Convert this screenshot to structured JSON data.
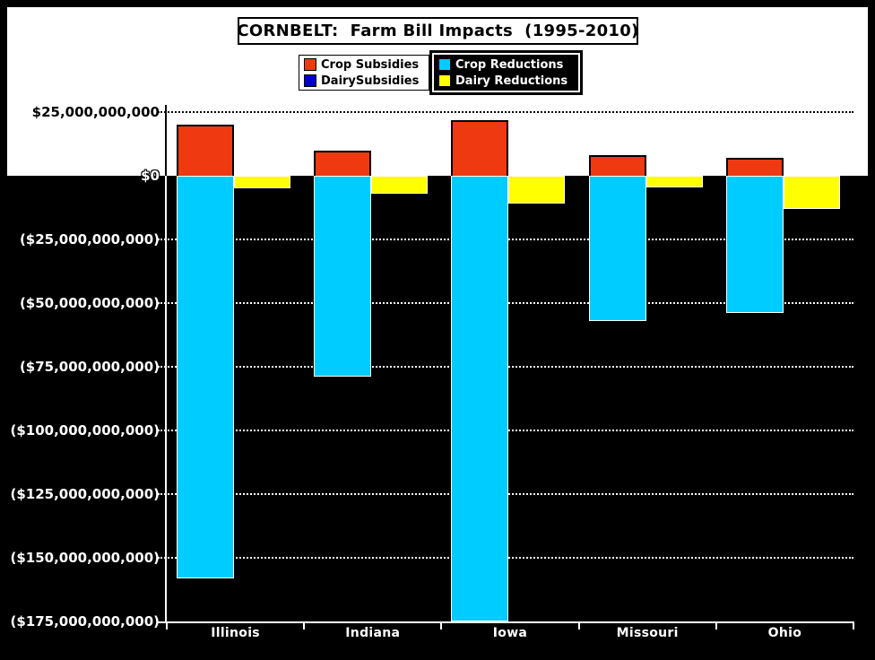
{
  "chart_data": {
    "type": "bar",
    "title": "CORNBELT:  Farm Bill Impacts  (1995-2010)",
    "categories": [
      "Illinois",
      "Indiana",
      "Iowa",
      "Missouri",
      "Ohio"
    ],
    "series": [
      {
        "name": "Crop Subsidies",
        "column": "crop",
        "color": "#EE3911",
        "values_billion_usd": [
          20,
          10,
          22,
          8,
          7
        ]
      },
      {
        "name": "DairySubsidies",
        "column": "dairy",
        "color": "#0000CC",
        "values_billion_usd": [
          0,
          0,
          0,
          0,
          0
        ]
      },
      {
        "name": "Crop Reductions",
        "column": "crop",
        "color": "#00CCFF",
        "values_billion_usd": [
          -158,
          -79,
          -175,
          -57,
          -54
        ]
      },
      {
        "name": "Dairy Reductions",
        "column": "dairy",
        "color": "#FFFF00",
        "values_billion_usd": [
          -5,
          -7,
          -11,
          -4.5,
          -13
        ]
      }
    ],
    "y_axis": {
      "range_billion": [
        -175,
        25
      ],
      "tick_step_billion": 25,
      "ticks": [
        {
          "value_billion": 25,
          "label": "$25,000,000,000"
        },
        {
          "value_billion": 0,
          "label": "$0"
        },
        {
          "value_billion": -25,
          "label": "($25,000,000,000)"
        },
        {
          "value_billion": -50,
          "label": "($50,000,000,000)"
        },
        {
          "value_billion": -75,
          "label": "($75,000,000,000)"
        },
        {
          "value_billion": -100,
          "label": "($100,000,000,000)"
        },
        {
          "value_billion": -125,
          "label": "($125,000,000,000)"
        },
        {
          "value_billion": -150,
          "label": "($150,000,000,000)"
        },
        {
          "value_billion": -175,
          "label": "($175,000,000,000)"
        }
      ]
    },
    "grid": "horizontal dotted",
    "legend_position": "top",
    "colors": {
      "background_above_zero": "#FFFFFF",
      "background_below_zero": "#000000",
      "frame": "#000000"
    }
  }
}
